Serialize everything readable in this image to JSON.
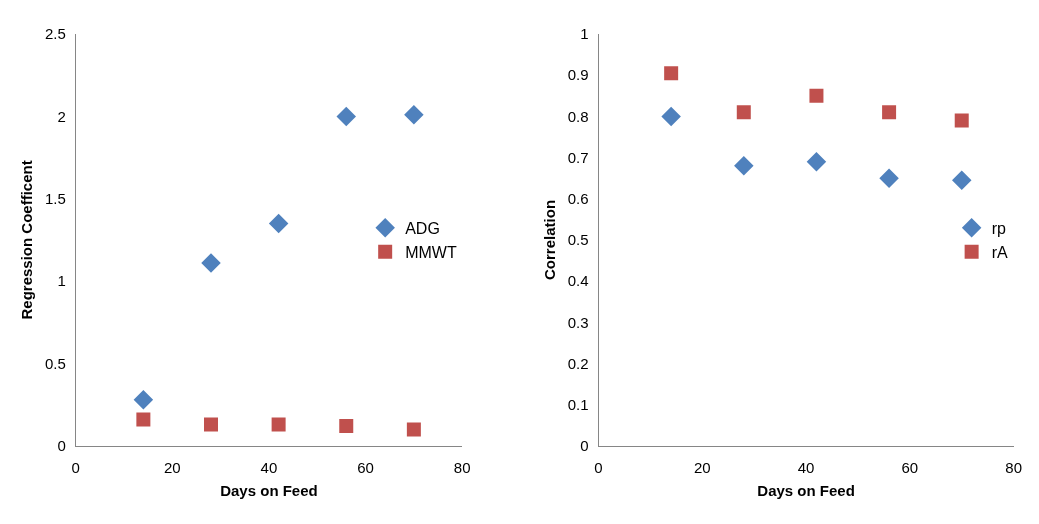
{
  "chart_data": [
    {
      "type": "scatter",
      "xlabel": "Days on Feed",
      "ylabel": "Regression Coefficent",
      "xlim": [
        0,
        80
      ],
      "xticks": [
        0,
        20,
        40,
        60,
        80
      ],
      "ylim": [
        0,
        2.5
      ],
      "yticks": [
        0,
        0.5,
        1,
        1.5,
        2,
        2.5
      ],
      "grid": false,
      "legend": "right",
      "x": [
        14,
        28,
        42,
        56,
        70
      ],
      "series": [
        {
          "name": "ADG",
          "color": "#4f81bd",
          "marker": "diamond",
          "values": [
            0.28,
            1.11,
            1.35,
            2.0,
            2.01
          ]
        },
        {
          "name": "MMWT",
          "color": "#c0504d",
          "marker": "square",
          "values": [
            0.16,
            0.13,
            0.13,
            0.12,
            0.1
          ]
        }
      ]
    },
    {
      "type": "scatter",
      "xlabel": "Days on Feed",
      "ylabel": "Correlation",
      "xlim": [
        0,
        80
      ],
      "xticks": [
        0,
        20,
        40,
        60,
        80
      ],
      "ylim": [
        0,
        1
      ],
      "yticks": [
        0,
        0.1,
        0.2,
        0.3,
        0.4,
        0.5,
        0.6,
        0.7,
        0.8,
        0.9,
        1
      ],
      "grid": false,
      "legend": "right",
      "x": [
        14,
        28,
        42,
        56,
        70
      ],
      "series": [
        {
          "name": "rp",
          "color": "#4f81bd",
          "marker": "diamond",
          "values": [
            0.8,
            0.68,
            0.69,
            0.65,
            0.645
          ]
        },
        {
          "name": "rA",
          "color": "#c0504d",
          "marker": "square",
          "values": [
            0.905,
            0.81,
            0.85,
            0.81,
            0.79
          ]
        }
      ]
    }
  ]
}
